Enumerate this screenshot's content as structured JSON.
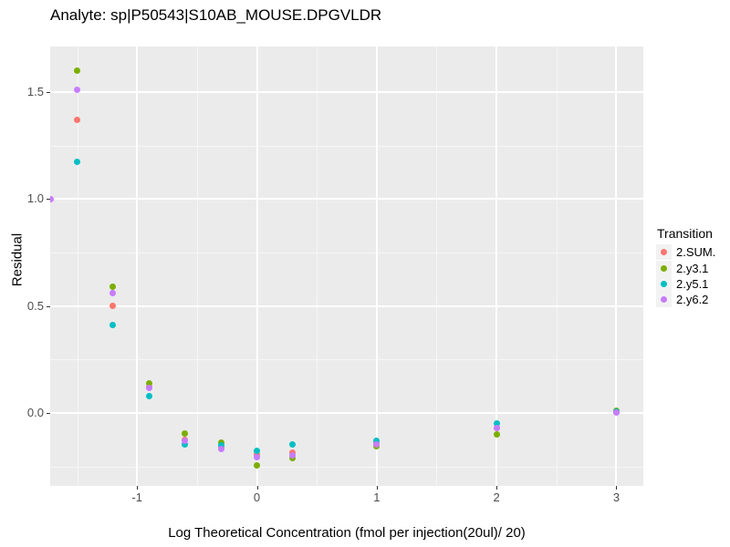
{
  "title": "Analyte: sp|P50543|S10AB_MOUSE.DPGVLDR",
  "chart_data": {
    "type": "scatter",
    "title": "Analyte: sp|P50543|S10AB_MOUSE.DPGVLDR",
    "xlabel": "Log Theoretical Concentration (fmol per injection(20ul)/ 20)",
    "ylabel": "Residual",
    "xlim": [
      -1.725,
      3.225
    ],
    "ylim": [
      -0.341,
      1.713
    ],
    "grid": true,
    "panel_background": "#EBEBEB",
    "gridline_color": "#FFFFFF",
    "legend_title": "Transition",
    "legend_position": "right",
    "x_ticks": [
      {
        "value": -1,
        "label": "-1"
      },
      {
        "value": 0,
        "label": "0"
      },
      {
        "value": 1,
        "label": "1"
      },
      {
        "value": 2,
        "label": "2"
      },
      {
        "value": 3,
        "label": "3"
      }
    ],
    "y_ticks": [
      {
        "value": 0.0,
        "label": "0.0"
      },
      {
        "value": 0.5,
        "label": "0.5"
      },
      {
        "value": 1.0,
        "label": "1.0"
      },
      {
        "value": 1.5,
        "label": "1.5"
      }
    ],
    "x_minor": [
      -1.5,
      -0.5,
      0.5,
      1.5,
      2.5
    ],
    "y_minor": [
      -0.25,
      0.25,
      0.75,
      1.25
    ],
    "series": [
      {
        "name": "2.SUM.",
        "color": "#F8766D",
        "points": [
          [
            -1.5,
            1.37
          ],
          [
            -1.2,
            0.5
          ],
          [
            -0.9,
            0.12
          ],
          [
            -0.6,
            -0.125
          ],
          [
            -0.3,
            -0.16
          ],
          [
            0,
            -0.195
          ],
          [
            0.3,
            -0.185
          ],
          [
            1,
            -0.14
          ],
          [
            2,
            -0.07
          ],
          [
            3,
            0.006
          ]
        ]
      },
      {
        "name": "2.y3.1",
        "color": "#7CAE00",
        "points": [
          [
            -1.5,
            1.6
          ],
          [
            -1.2,
            0.59
          ],
          [
            -0.9,
            0.14
          ],
          [
            -0.6,
            -0.095
          ],
          [
            -0.3,
            -0.137
          ],
          [
            0,
            -0.245
          ],
          [
            0.3,
            -0.21
          ],
          [
            1,
            -0.155
          ],
          [
            2,
            -0.1
          ],
          [
            3,
            0.01
          ]
        ]
      },
      {
        "name": "2.y5.1",
        "color": "#00BFC4",
        "points": [
          [
            -1.5,
            1.175
          ],
          [
            -1.2,
            0.41
          ],
          [
            -0.9,
            0.08
          ],
          [
            -0.6,
            -0.148
          ],
          [
            -0.3,
            -0.151
          ],
          [
            0,
            -0.175
          ],
          [
            0.3,
            -0.145
          ],
          [
            1,
            -0.128
          ],
          [
            2,
            -0.05
          ],
          [
            3,
            0.006
          ]
        ]
      },
      {
        "name": "2.y6.2",
        "color": "#C77CFF",
        "points": [
          [
            -1.725,
            1.0
          ],
          [
            -1.5,
            1.51
          ],
          [
            -1.2,
            0.56
          ],
          [
            -0.9,
            0.115
          ],
          [
            -0.6,
            -0.13
          ],
          [
            -0.3,
            -0.17
          ],
          [
            0,
            -0.205
          ],
          [
            0.3,
            -0.2
          ],
          [
            1,
            -0.147
          ],
          [
            2,
            -0.07
          ],
          [
            3,
            0.004
          ]
        ]
      }
    ]
  }
}
